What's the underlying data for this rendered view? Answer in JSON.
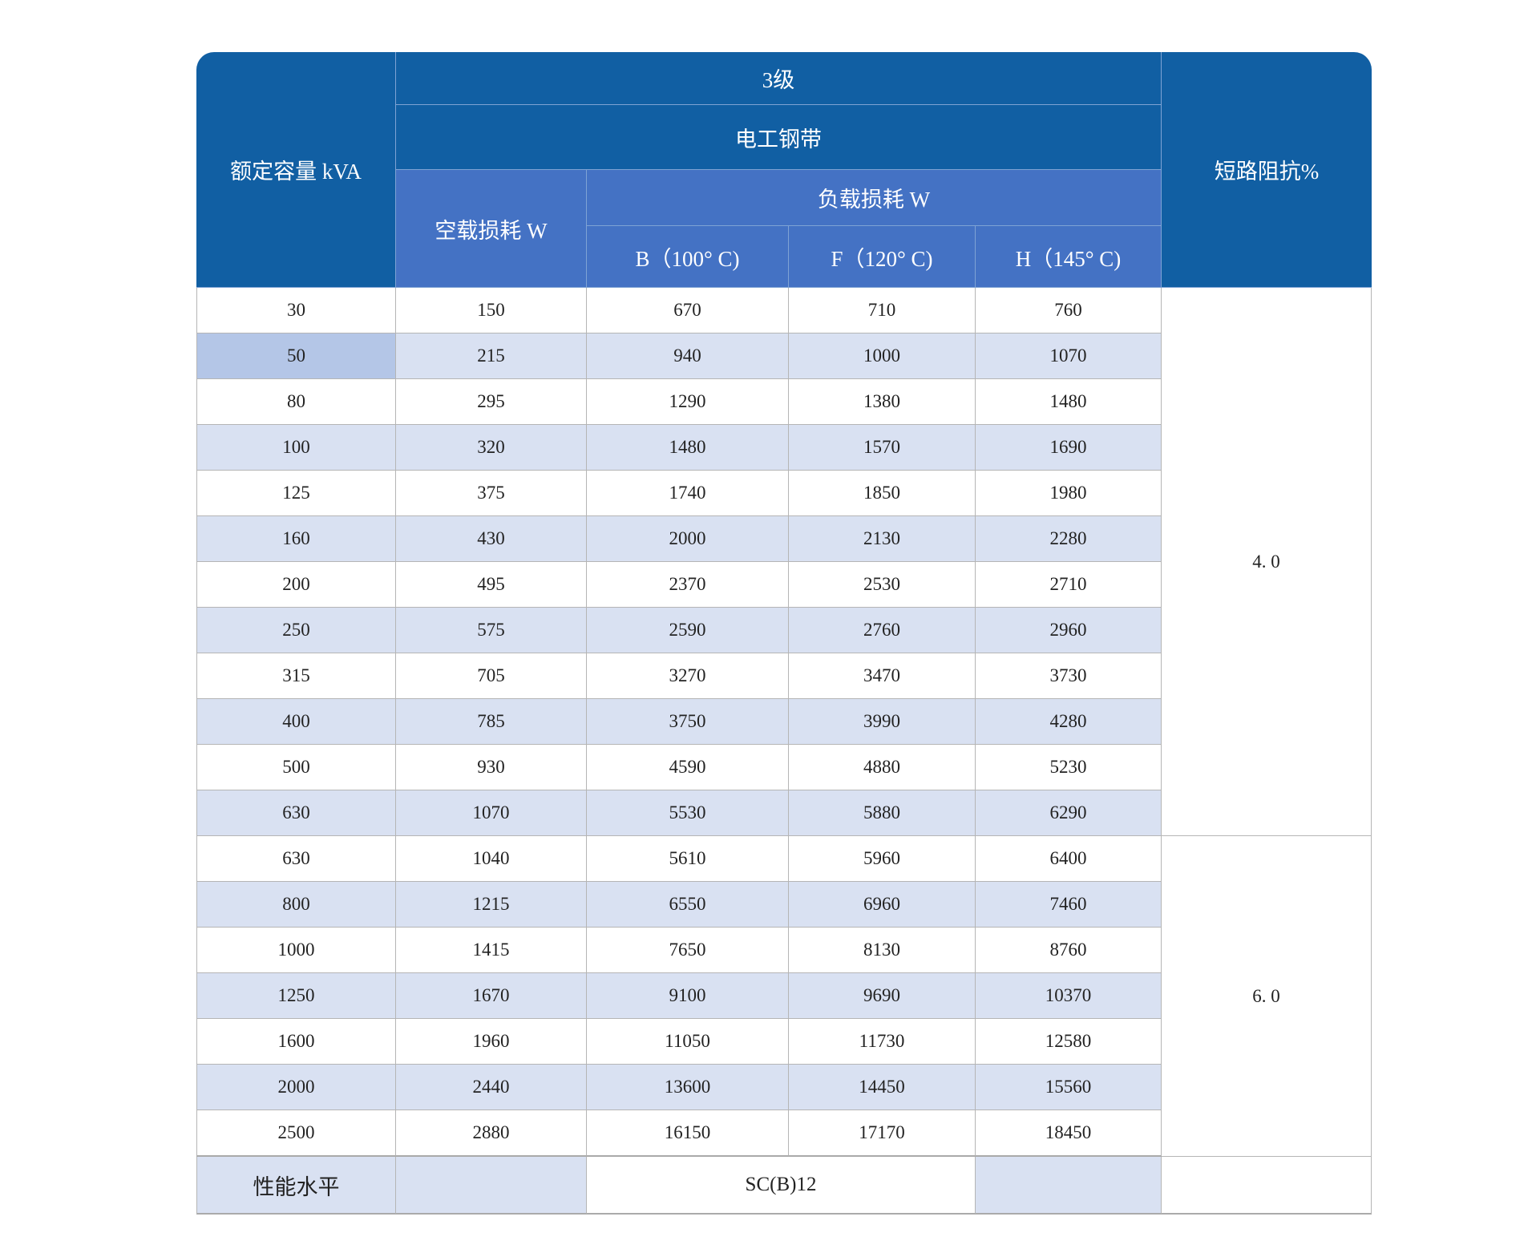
{
  "header": {
    "capacity": "额定容量 kVA",
    "level": "3级",
    "material": "电工钢带",
    "no_load_loss": "空载损耗 W",
    "load_loss": "负载损耗 W",
    "temp_b": "B（100° C)",
    "temp_f": "F（120° C)",
    "temp_h": "H（145° C)",
    "impedance": "短路阻抗%"
  },
  "rows": [
    [
      "30",
      "150",
      "670",
      "710",
      "760"
    ],
    [
      "50",
      "215",
      "940",
      "1000",
      "1070"
    ],
    [
      "80",
      "295",
      "1290",
      "1380",
      "1480"
    ],
    [
      "100",
      "320",
      "1480",
      "1570",
      "1690"
    ],
    [
      "125",
      "375",
      "1740",
      "1850",
      "1980"
    ],
    [
      "160",
      "430",
      "2000",
      "2130",
      "2280"
    ],
    [
      "200",
      "495",
      "2370",
      "2530",
      "2710"
    ],
    [
      "250",
      "575",
      "2590",
      "2760",
      "2960"
    ],
    [
      "315",
      "705",
      "3270",
      "3470",
      "3730"
    ],
    [
      "400",
      "785",
      "3750",
      "3990",
      "4280"
    ],
    [
      "500",
      "930",
      "4590",
      "4880",
      "5230"
    ],
    [
      "630",
      "1070",
      "5530",
      "5880",
      "6290"
    ],
    [
      "630",
      "1040",
      "5610",
      "5960",
      "6400"
    ],
    [
      "800",
      "1215",
      "6550",
      "6960",
      "7460"
    ],
    [
      "1000",
      "1415",
      "7650",
      "8130",
      "8760"
    ],
    [
      "1250",
      "1670",
      "9100",
      "9690",
      "10370"
    ],
    [
      "1600",
      "1960",
      "11050",
      "11730",
      "12580"
    ],
    [
      "2000",
      "2440",
      "13600",
      "14450",
      "15560"
    ],
    [
      "2500",
      "2880",
      "16150",
      "17170",
      "18450"
    ]
  ],
  "impedance_groups": [
    {
      "value": "4. 0",
      "rows": 12
    },
    {
      "value": "6. 0",
      "rows": 7
    }
  ],
  "footer": {
    "label": "性能水平",
    "value": "SC(B)12"
  },
  "colors": {
    "header_dark": "#115FA3",
    "header_mid": "#4472C4",
    "row_alt": "#D9E1F2",
    "highlight": "#B4C6E7"
  }
}
